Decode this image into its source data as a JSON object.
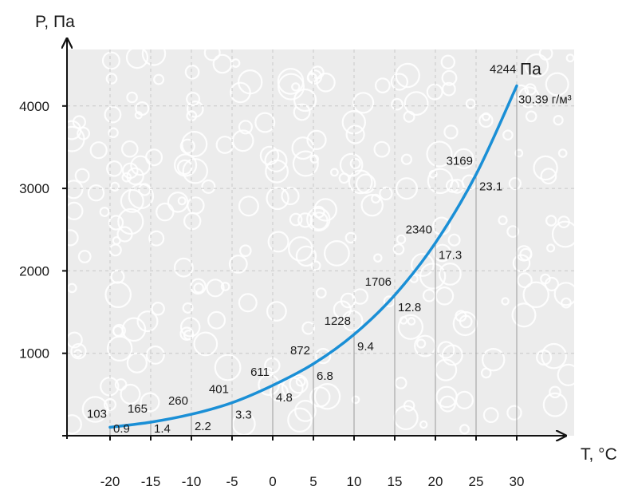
{
  "chart_data": {
    "type": "line",
    "xlabel": "T, °C",
    "ylabel": "P, Па",
    "xlim": [
      -25,
      35
    ],
    "ylim": [
      0,
      4700
    ],
    "x_ticks": [
      "-20",
      "-15",
      "-10",
      "-5",
      "0",
      "5",
      "10",
      "15",
      "20",
      "25",
      "30"
    ],
    "y_ticks": [
      "1000",
      "2000",
      "3000",
      "4000"
    ],
    "grid": true,
    "series": [
      {
        "x": [
          -20,
          -15,
          -10,
          -5,
          0,
          5,
          10,
          15,
          20,
          25,
          30
        ],
        "values": [
          103,
          165,
          260,
          401,
          611,
          872,
          1228,
          1706,
          2340,
          3169,
          4244
        ]
      }
    ],
    "point_labels": [
      "103",
      "165",
      "260",
      "401",
      "611",
      "872",
      "1228",
      "1706",
      "2340",
      "3169",
      "4244"
    ],
    "humidity_labels": [
      "0.9",
      "1.4",
      "2.2",
      "3.3",
      "4.8",
      "6.8",
      "9.4",
      "12.8",
      "17.3",
      "23.1",
      "30.39 г/м³"
    ],
    "end_unit": "Па",
    "colors": {
      "curve": "#1a8fd6",
      "grid": "#c8c8c8",
      "background": "#ececec",
      "bubbles": "#ffffff"
    }
  }
}
